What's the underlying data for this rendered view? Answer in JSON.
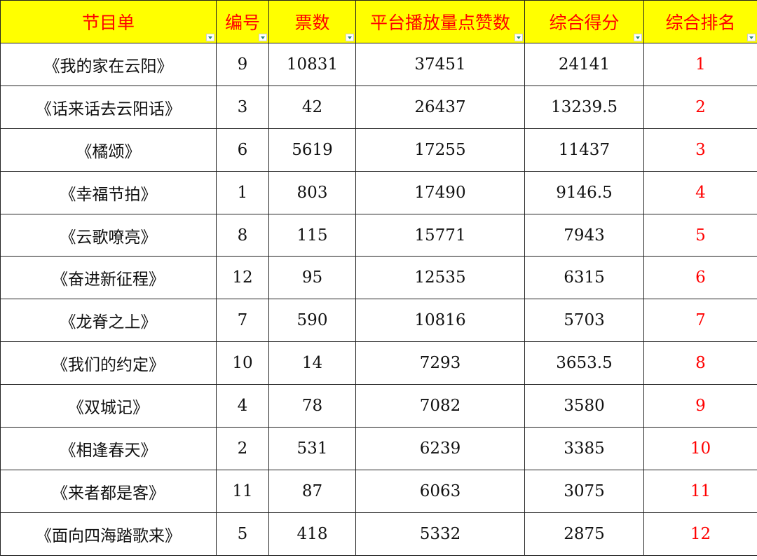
{
  "headers": [
    "节目单",
    "编号",
    "票数",
    "平台播放量点赞数",
    "综合得分",
    "综合排名"
  ],
  "colors": {
    "header_bg": "#ffff00",
    "header_text": "#ff0000",
    "rank_text": "#ff0000"
  },
  "rows": [
    [
      "《我的家在云阳》",
      "9",
      "10831",
      "37451",
      "24141",
      "1"
    ],
    [
      "《话来话去云阳话》",
      "3",
      "42",
      "26437",
      "13239.5",
      "2"
    ],
    [
      "《橘颂》",
      "6",
      "5619",
      "17255",
      "11437",
      "3"
    ],
    [
      "《幸福节拍》",
      "1",
      "803",
      "17490",
      "9146.5",
      "4"
    ],
    [
      "《云歌嘹亮》",
      "8",
      "115",
      "15771",
      "7943",
      "5"
    ],
    [
      "《奋进新征程》",
      "12",
      "95",
      "12535",
      "6315",
      "6"
    ],
    [
      "《龙脊之上》",
      "7",
      "590",
      "10816",
      "5703",
      "7"
    ],
    [
      "《我们的约定》",
      "10",
      "14",
      "7293",
      "3653.5",
      "8"
    ],
    [
      "《双城记》",
      "4",
      "78",
      "7082",
      "3580",
      "9"
    ],
    [
      "《相逢春天》",
      "2",
      "531",
      "6239",
      "3385",
      "10"
    ],
    [
      "《来者都是客》",
      "11",
      "87",
      "6063",
      "3075",
      "11"
    ],
    [
      "《面向四海踏歌来》",
      "5",
      "418",
      "5332",
      "2875",
      "12"
    ]
  ]
}
